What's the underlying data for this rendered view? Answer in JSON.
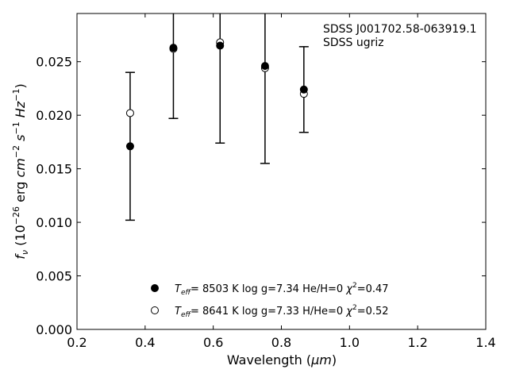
{
  "chart_data": {
    "type": "scatter",
    "xlabel": "Wavelength (",
    "xlabel_unit": "μm",
    "xlabel_close": ")",
    "ylabel_prefix": "f",
    "ylabel_sub": "ν",
    "ylabel_mid": " (10",
    "ylabel_exp": "−26",
    "ylabel_erg": " erg ",
    "ylabel_cm": "cm",
    "ylabel_cm_exp": "−2",
    "ylabel_s": " s",
    "ylabel_s_exp": "−1",
    "ylabel_hz": " Hz",
    "ylabel_hz_exp": "−1",
    "ylabel_close": ")",
    "xlim": [
      0.2,
      1.4
    ],
    "ylim": [
      0.0,
      0.0295
    ],
    "xticks": [
      0.2,
      0.4,
      0.6,
      0.8,
      1.0,
      1.2,
      1.4
    ],
    "xtick_labels": [
      "0.2",
      "0.4",
      "0.6",
      "0.8",
      "1.0",
      "1.2",
      "1.4"
    ],
    "yticks": [
      0.0,
      0.005,
      0.01,
      0.015,
      0.02,
      0.025
    ],
    "ytick_labels": [
      "0.000",
      "0.005",
      "0.010",
      "0.015",
      "0.020",
      "0.025"
    ],
    "grid": false,
    "legend_placement": "lower-center",
    "annotation": [
      "SDSS J001702.58-063919.1",
      "SDSS ugriz"
    ],
    "observed": {
      "x": [
        0.356,
        0.483,
        0.62,
        0.752,
        0.866
      ],
      "y": [
        0.0171,
        0.0263,
        0.0265,
        0.0246,
        0.0224
      ],
      "err": [
        0.0069,
        0.0066,
        0.0091,
        0.0091,
        0.004
      ]
    },
    "series": [
      {
        "marker": "filled",
        "teff_label": "T",
        "teff_sub": "eff",
        "text1": "=  8503 K  log g=7.34  He/H=0  ",
        "chi": "χ",
        "chi_exp": "2",
        "text2": "=0.47",
        "x": [
          0.356,
          0.483,
          0.62,
          0.752,
          0.866
        ],
        "y": [
          0.0171,
          0.0263,
          0.0265,
          0.0246,
          0.0224
        ]
      },
      {
        "marker": "open",
        "teff_label": "T",
        "teff_sub": "eff",
        "text1": "=  8641 K  log g=7.33  H/He=0  ",
        "chi": "χ",
        "chi_exp": "2",
        "text2": "=0.52",
        "x": [
          0.356,
          0.483,
          0.62,
          0.752,
          0.866
        ],
        "y": [
          0.0202,
          0.0262,
          0.0268,
          0.0244,
          0.022
        ]
      }
    ]
  }
}
